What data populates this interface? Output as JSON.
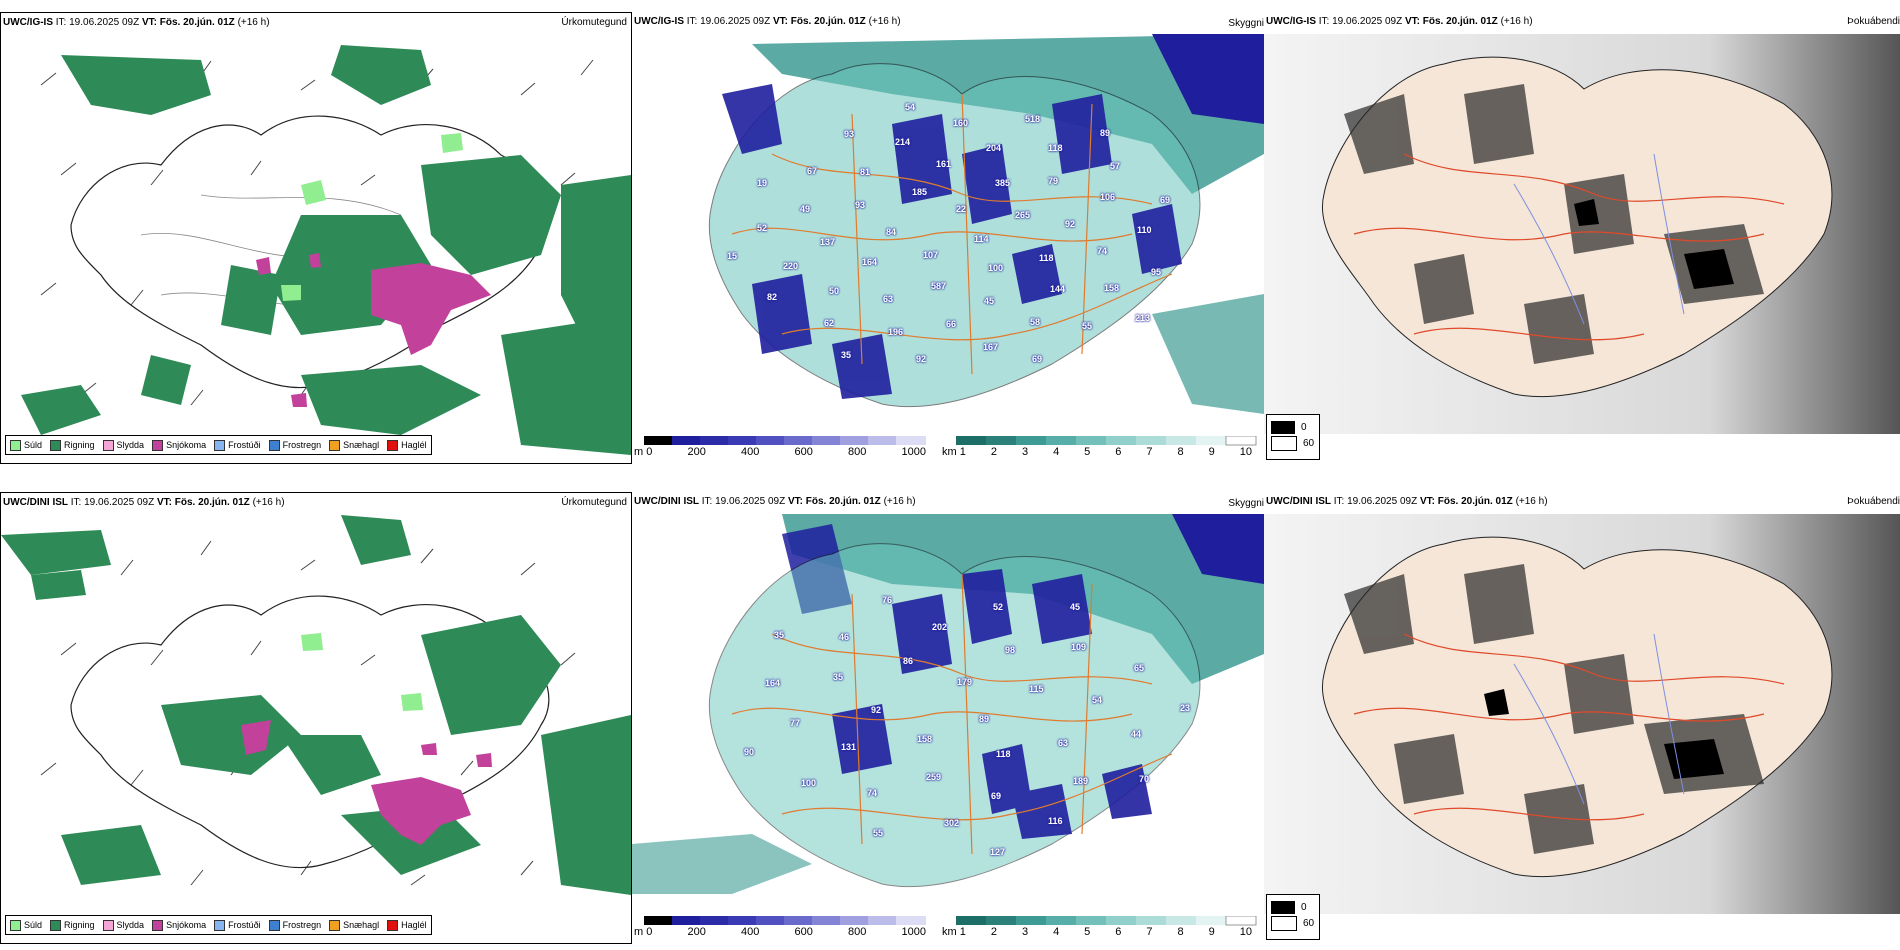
{
  "rows": [
    {
      "model_label": "UWC/IG-IS",
      "it_label": "IT:",
      "it_value": "19.06.2025 09Z",
      "vt_label": "VT:",
      "vt_value": "Fös. 20.jún. 01Z",
      "lead": "(+16 h)",
      "precip_title": "Úrkomutegund",
      "ceiling_title": "Skyggni",
      "vis_title": "Þokuábendi",
      "ceiling_numbers": [
        "114",
        "107",
        "22",
        "100",
        "84",
        "265",
        "587",
        "185",
        "118",
        "164",
        "385",
        "45",
        "93",
        "92",
        "63",
        "161",
        "144",
        "137",
        "79",
        "66",
        "81",
        "74",
        "50",
        "204",
        "58",
        "49",
        "106",
        "196",
        "214",
        "158",
        "220",
        "118",
        "167",
        "67",
        "110",
        "62",
        "160",
        "55",
        "52",
        "57",
        "92",
        "93",
        "95",
        "82",
        "518",
        "69",
        "19",
        "69",
        "35",
        "54",
        "213",
        "15",
        "89"
      ]
    },
    {
      "model_label": "UWC/DINI ISL",
      "it_label": "IT:",
      "it_value": "19.06.2025 09Z",
      "vt_label": "VT:",
      "vt_value": "Fös. 20.jún. 01Z",
      "lead": "(+16 h)",
      "precip_title": "Úrkomutegund",
      "ceiling_title": "Skyggni",
      "vis_title": "Þokuábendi",
      "ceiling_numbers": [
        "89",
        "158",
        "179",
        "118",
        "92",
        "115",
        "259",
        "86",
        "63",
        "131",
        "98",
        "69",
        "35",
        "54",
        "74",
        "202",
        "189",
        "77",
        "109",
        "302",
        "46",
        "44",
        "100",
        "52",
        "116",
        "164",
        "65",
        "55",
        "76",
        "70",
        "90",
        "45",
        "127",
        "35",
        "23"
      ]
    }
  ],
  "precip_legend": [
    {
      "label": "Súld",
      "color": "#90ee90"
    },
    {
      "label": "Rigning",
      "color": "#2e8b57"
    },
    {
      "label": "Slydda",
      "color": "#f4a6d7"
    },
    {
      "label": "Snjókoma",
      "color": "#c2419a"
    },
    {
      "label": "Frostúði",
      "color": "#87b5f0"
    },
    {
      "label": "Frostregn",
      "color": "#3f7fd0"
    },
    {
      "label": "Snæhagl",
      "color": "#f0a020"
    },
    {
      "label": "Haglél",
      "color": "#e01010"
    }
  ],
  "height_bar": {
    "unit": "m",
    "ticks": [
      "0",
      "200",
      "400",
      "600",
      "800",
      "1000"
    ]
  },
  "vis_bar": {
    "unit": "km",
    "ticks": [
      "1",
      "2",
      "3",
      "4",
      "5",
      "6",
      "7",
      "8",
      "9",
      "10"
    ]
  },
  "fog_key": {
    "values": [
      "0",
      "60"
    ]
  },
  "colors": {
    "rain": "#2e8b57",
    "drizzle": "#90ee90",
    "snow": "#c2419a",
    "teal": "#3e9b94",
    "ceiling_dark": "#1f1f9e",
    "road": "#e07b2e",
    "fog_land": "#f5e6d8"
  }
}
